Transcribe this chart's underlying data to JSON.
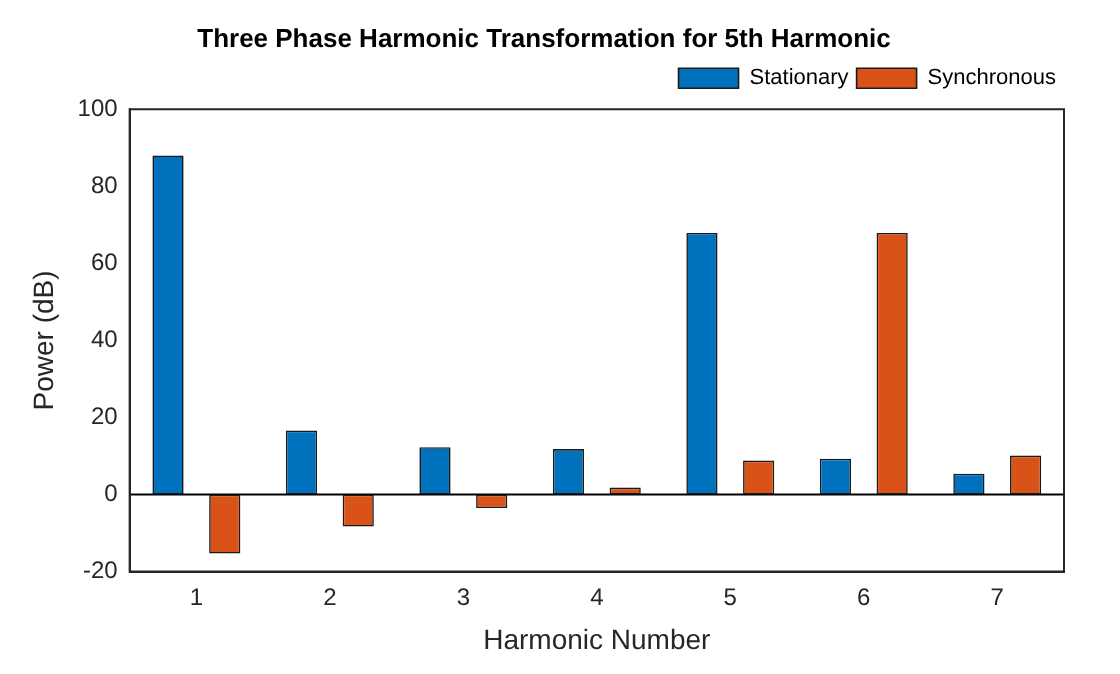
{
  "chart_data": {
    "type": "bar",
    "title": "Three Phase Harmonic Transformation for 5th Harmonic",
    "xlabel": "Harmonic Number",
    "ylabel": "Power (dB)",
    "categories": [
      "1",
      "2",
      "3",
      "4",
      "5",
      "6",
      "7"
    ],
    "series": [
      {
        "name": "Stationary",
        "color": "#0072bd",
        "values": [
          88,
          16.6,
          12.3,
          11.8,
          67.9,
          9.3,
          5.4
        ]
      },
      {
        "name": "Synchronous",
        "color": "#d95319",
        "values": [
          -15.3,
          -8.3,
          -3.5,
          1.8,
          8.8,
          67.9,
          10.1
        ]
      }
    ],
    "ylim": [
      -20,
      100
    ],
    "yticks": [
      -20,
      0,
      20,
      40,
      60,
      80,
      100
    ],
    "grid": false,
    "legend": "top right",
    "ref_lines": [
      {
        "axis": "y",
        "value": 0,
        "color": "#000000"
      }
    ]
  }
}
